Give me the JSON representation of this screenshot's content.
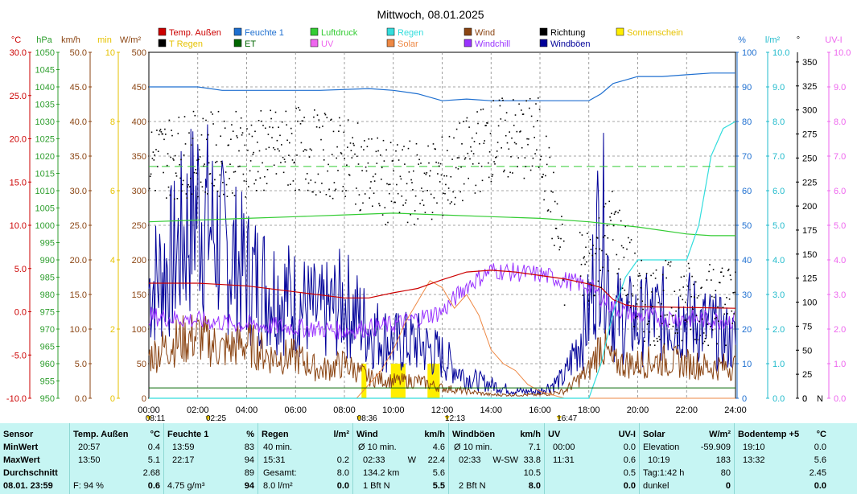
{
  "title": "Mittwoch, 08.01.2025",
  "legend": [
    {
      "label": "Temp. Außen",
      "color": "#cc0000"
    },
    {
      "label": "Feuchte 1",
      "color": "#1e6fd0"
    },
    {
      "label": "Luftdruck",
      "color": "#33cc33"
    },
    {
      "label": "Regen",
      "color": "#33dddd"
    },
    {
      "label": "Wind",
      "color": "#8b4513"
    },
    {
      "label": "Richtung",
      "color": "#000000"
    },
    {
      "label": "Sonnenschein",
      "color": "#ffee00"
    },
    {
      "label": "T Regen",
      "color": "#000000"
    },
    {
      "label": "ET",
      "color": "#006600"
    },
    {
      "label": "UV",
      "color": "#ee66ee"
    },
    {
      "label": "Solar",
      "color": "#ee8844"
    },
    {
      "label": "Windchill",
      "color": "#9933ff"
    },
    {
      "label": "Windböen",
      "color": "#000099"
    }
  ],
  "axes": {
    "temp": {
      "unit": "°C",
      "color": "#cc0000",
      "ticks": [
        "30.0",
        "25.0",
        "20.0",
        "15.0",
        "10.0",
        "5.0",
        "0.0",
        "-5.0",
        "-10.0"
      ]
    },
    "hpa": {
      "unit": "hPa",
      "color": "#2e9e2e",
      "ticks": [
        "1050",
        "1045",
        "1040",
        "1035",
        "1030",
        "1025",
        "1020",
        "1015",
        "1010",
        "1005",
        "1000",
        "995",
        "990",
        "985",
        "980",
        "975",
        "970",
        "965",
        "960",
        "955",
        "950"
      ]
    },
    "kmh": {
      "unit": "km/h",
      "color": "#8b4513",
      "ticks": [
        "50.0",
        "45.0",
        "40.0",
        "35.0",
        "30.0",
        "25.0",
        "20.0",
        "15.0",
        "10.0",
        "5.0",
        "0.0"
      ]
    },
    "min": {
      "unit": "min",
      "color": "#e6c200",
      "ticks": [
        "10",
        "8",
        "6",
        "4",
        "2",
        "0"
      ]
    },
    "wm2": {
      "unit": "W/m²",
      "color": "#8b4513",
      "ticks": [
        "500",
        "450",
        "400",
        "350",
        "300",
        "250",
        "200",
        "150",
        "100",
        "50",
        "0"
      ]
    },
    "pct": {
      "unit": "%",
      "color": "#1e6fd0",
      "ticks": [
        "100",
        "90",
        "80",
        "70",
        "60",
        "50",
        "40",
        "30",
        "20",
        "10",
        "0"
      ]
    },
    "lm2": {
      "unit": "l/m²",
      "color": "#22bbcc",
      "ticks": [
        "10.0",
        "9.0",
        "8.0",
        "7.0",
        "6.0",
        "5.0",
        "4.0",
        "3.0",
        "2.0",
        "1.0",
        "0.0"
      ]
    },
    "deg": {
      "unit": "°",
      "color": "#000000",
      "ticks": [
        "350",
        "325",
        "300",
        "275",
        "250",
        "225",
        "200",
        "175",
        "150",
        "125",
        "100",
        "75",
        "50",
        "25",
        "0"
      ],
      "bottom_label": "N"
    },
    "uvi": {
      "unit": "UV-I",
      "color": "#ee66ee",
      "ticks": [
        "10.0",
        "9.0",
        "8.0",
        "7.0",
        "6.0",
        "5.0",
        "4.0",
        "3.0",
        "2.0",
        "1.0",
        "0.0"
      ]
    },
    "time": {
      "ticks": [
        "00:00",
        "02:00",
        "04:00",
        "06:00",
        "08:00",
        "10:00",
        "12:00",
        "14:00",
        "16:00",
        "18:00",
        "20:00",
        "22:00",
        "24:00"
      ]
    }
  },
  "time_markers": [
    {
      "label": "08:11",
      "hour": 0,
      "row": 1
    },
    {
      "label": "02:25",
      "hour": 2.42,
      "row": 0
    },
    {
      "label": "08:36",
      "hour": 8.6,
      "row": 1
    },
    {
      "label": "12:13",
      "hour": 12.2,
      "row": 1
    },
    {
      "label": "16:47",
      "hour": 16.78,
      "row": 1
    }
  ],
  "chart_data": {
    "type": "line",
    "title": "Mittwoch, 08.01.2025",
    "x_range_hours": [
      0,
      24
    ],
    "series": [
      {
        "name": "Feuchte 1",
        "axis": "pct",
        "unit": "%",
        "x": [
          0,
          2,
          3,
          5,
          7,
          9,
          10,
          11,
          12,
          13,
          14,
          15,
          16,
          17,
          18,
          18.5,
          19,
          19.5,
          20,
          21,
          22,
          23,
          24
        ],
        "values": [
          90,
          90,
          89,
          89,
          89,
          89.5,
          89,
          88,
          86,
          86.5,
          86,
          86,
          86,
          86,
          86,
          88,
          91,
          92,
          93,
          93,
          93.5,
          94,
          94
        ]
      },
      {
        "name": "Luftdruck",
        "axis": "hpa",
        "unit": "hPa",
        "x": [
          0,
          2,
          4,
          6,
          8,
          10,
          12,
          14,
          16,
          18,
          20,
          22,
          23,
          24
        ],
        "values": [
          1001,
          1001.5,
          1002,
          1002.5,
          1003,
          1003.5,
          1003,
          1002.5,
          1002,
          1001,
          999.5,
          997.5,
          997,
          997
        ]
      },
      {
        "name": "Temp. Außen",
        "axis": "temp",
        "unit": "°C",
        "x": [
          0,
          2,
          4,
          6,
          8,
          9,
          10,
          11,
          12,
          13,
          14,
          15,
          16,
          17,
          18,
          18.5,
          19,
          19.5,
          20,
          22,
          24
        ],
        "values": [
          3.3,
          3.3,
          3.0,
          2.3,
          1.6,
          1.6,
          2.2,
          2.7,
          3.7,
          4.6,
          4.8,
          4.6,
          4.2,
          3.8,
          3.2,
          2.8,
          1.4,
          0.8,
          0.6,
          0.5,
          0.4
        ]
      },
      {
        "name": "Windchill",
        "axis": "temp",
        "unit": "°C",
        "x": [
          0,
          2,
          4,
          6,
          8,
          10,
          12,
          13,
          14,
          16,
          18,
          19,
          20,
          22,
          24
        ],
        "values": [
          -0.5,
          -1,
          -1.5,
          -1.8,
          -2.2,
          -1.5,
          0,
          3,
          4.8,
          4.3,
          3,
          0.5,
          -0.5,
          -0.8,
          -1
        ]
      },
      {
        "name": "Regen",
        "axis": "lm2",
        "unit": "l/m²",
        "x": [
          0,
          18,
          18.5,
          19,
          19.5,
          20,
          21,
          22,
          22.5,
          23,
          23.5,
          24
        ],
        "values": [
          0,
          0,
          1,
          2.5,
          3.5,
          4,
          4,
          4,
          5,
          7,
          7.8,
          8
        ]
      },
      {
        "name": "Solar",
        "axis": "wm2",
        "unit": "W/m²",
        "x": [
          0,
          8.5,
          9,
          9.5,
          10,
          10.5,
          11,
          11.5,
          12,
          12.5,
          13,
          13.5,
          14,
          14.5,
          15,
          15.5,
          16,
          16.5,
          17,
          24
        ],
        "values": [
          0,
          0,
          20,
          40,
          70,
          110,
          140,
          170,
          160,
          130,
          150,
          120,
          70,
          50,
          40,
          20,
          10,
          5,
          0,
          0
        ]
      },
      {
        "name": "Wind",
        "axis": "kmh",
        "unit": "km/h",
        "x": [
          0,
          1,
          2,
          3,
          4,
          5,
          6,
          7,
          8,
          9,
          10,
          11,
          12,
          13,
          14,
          15,
          16,
          17,
          18,
          18.5,
          19,
          20,
          21,
          22,
          23,
          24
        ],
        "values": [
          6,
          8,
          9,
          7,
          8,
          6,
          6,
          4,
          5,
          3,
          2.5,
          2.5,
          1.5,
          1,
          0.5,
          0.5,
          0.5,
          1,
          4,
          8,
          5,
          5,
          5.5,
          5,
          4.5,
          4.6
        ]
      },
      {
        "name": "Windböen",
        "axis": "kmh",
        "unit": "km/h",
        "x": [
          0,
          1,
          2,
          3,
          4,
          5,
          6,
          7,
          8,
          9,
          10,
          11,
          12,
          13,
          14,
          15,
          16,
          17,
          18,
          18.5,
          19,
          20,
          21,
          22,
          23,
          24
        ],
        "values": [
          16,
          20,
          28,
          22,
          18,
          16,
          14,
          12,
          14,
          10,
          8,
          8,
          6,
          3,
          2,
          1,
          1,
          3,
          12,
          27,
          12,
          11,
          12,
          12,
          10,
          8
        ]
      },
      {
        "name": "Richtung",
        "axis": "deg",
        "unit": "°",
        "x": [
          0,
          2,
          4,
          6,
          8,
          10,
          12,
          14,
          15,
          16,
          17,
          18,
          18.5,
          19,
          20,
          22,
          24
        ],
        "values": [
          250,
          255,
          255,
          260,
          250,
          220,
          230,
          270,
          270,
          270,
          130,
          140,
          160,
          180,
          100,
          100,
          100
        ]
      }
    ],
    "summary_table": {
      "columns": [
        {
          "title": "Sensor",
          "unit": ""
        },
        {
          "title": "Temp. Außen",
          "unit": "°C"
        },
        {
          "title": "Feuchte 1",
          "unit": "%"
        },
        {
          "title": "Regen",
          "unit": "l/m²"
        },
        {
          "title": "Wind",
          "unit": "km/h"
        },
        {
          "title": "Windböen",
          "unit": "km/h"
        },
        {
          "title": "UV",
          "unit": "UV-I"
        },
        {
          "title": "Solar",
          "unit": "W/m²"
        },
        {
          "title": "Bodentemp +5",
          "unit": "°C"
        }
      ],
      "row_labels": [
        "MinWert",
        "MaxWert",
        "Durchschnitt",
        "08.01. 23:59"
      ],
      "temp": [
        [
          "20:57",
          "0.4"
        ],
        [
          "13:50",
          "5.1"
        ],
        [
          "",
          "2.68"
        ],
        [
          "F: 94 %",
          "0.6"
        ]
      ],
      "feuchte": [
        [
          "13:59",
          "83"
        ],
        [
          "22:17",
          "94"
        ],
        [
          "",
          "89"
        ],
        [
          "4.75 g/m³",
          "94"
        ]
      ],
      "regen": [
        [
          "40 min.",
          "",
          ""
        ],
        [
          "15:31",
          "",
          "0.2"
        ],
        [
          "Gesamt:",
          "",
          "8.0"
        ],
        [
          "8.0 l/m²",
          "",
          "0.0"
        ]
      ],
      "wind": [
        [
          "Ø 10 min.",
          "",
          "4.6"
        ],
        [
          "02:33",
          "W",
          "22.4"
        ],
        [
          "134.2 km",
          "",
          "5.6"
        ],
        [
          "1 Bft N",
          "",
          "5.5"
        ]
      ],
      "boeen": [
        [
          "Ø 10 min.",
          "",
          "7.1"
        ],
        [
          "02:33",
          "W-SW",
          "33.8"
        ],
        [
          "",
          "",
          "10.5"
        ],
        [
          "2 Bft N",
          "",
          "8.0"
        ]
      ],
      "uv": [
        [
          "00:00",
          "0.0"
        ],
        [
          "11:31",
          "0.6"
        ],
        [
          "",
          "0.5"
        ],
        [
          "",
          "0.0"
        ]
      ],
      "solar": [
        [
          "Elevation",
          "-59.909"
        ],
        [
          "10:19",
          "183"
        ],
        [
          "Tag:1:42 h",
          "80"
        ],
        [
          "dunkel",
          "0"
        ]
      ],
      "boden": [
        [
          "19:10",
          "0.0"
        ],
        [
          "13:32",
          "5.6"
        ],
        [
          "",
          "2.45"
        ],
        [
          "",
          "0.0"
        ]
      ]
    }
  }
}
